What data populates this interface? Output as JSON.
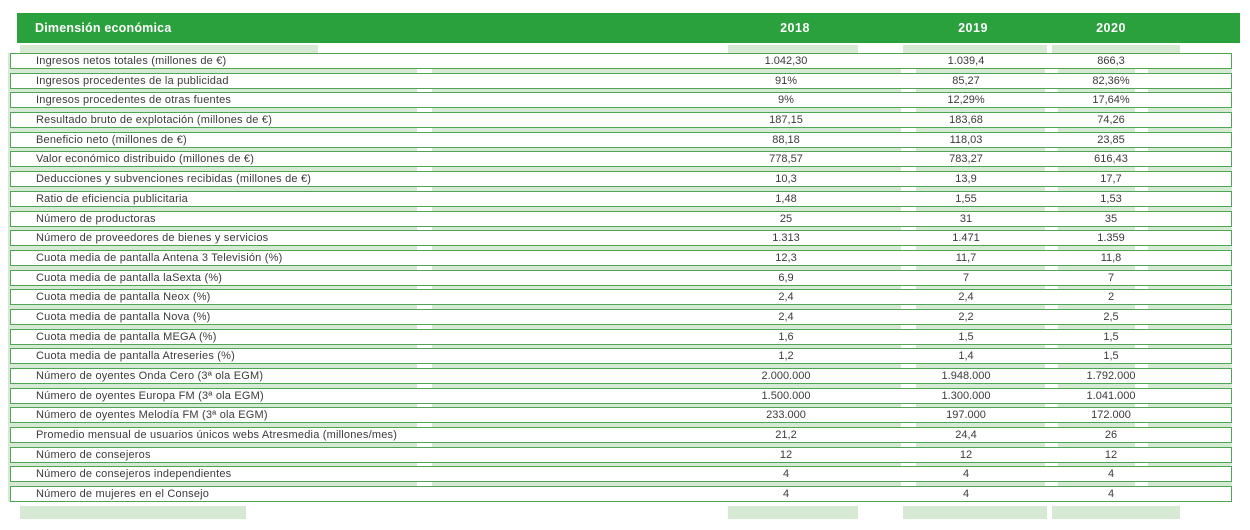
{
  "header": {
    "title": "Dimensión económica",
    "columns": [
      "2018",
      "2019",
      "2020"
    ]
  },
  "colors": {
    "header_green": "#2aa13c",
    "row_border": "#4fa456",
    "light_green": "#d5e9d3",
    "text": "#3b3b3a"
  },
  "table": {
    "rows": [
      {
        "label": "Ingresos netos totales (millones de €)",
        "y2018": "1.042,30",
        "y2019": "1.039,4",
        "y2020": "866,3"
      },
      {
        "label": "Ingresos procedentes de la publicidad",
        "y2018": "91%",
        "y2019": "85,27",
        "y2020": "82,36%"
      },
      {
        "label": "Ingresos procedentes de otras fuentes",
        "y2018": "9%",
        "y2019": "12,29%",
        "y2020": "17,64%"
      },
      {
        "label": "Resultado bruto de explotación (millones de €)",
        "y2018": "187,15",
        "y2019": "183,68",
        "y2020": "74,26"
      },
      {
        "label": "Beneficio neto (millones de €)",
        "y2018": "88,18",
        "y2019": "118,03",
        "y2020": "23,85"
      },
      {
        "label": "Valor económico distribuido (millones de €)",
        "y2018": "778,57",
        "y2019": "783,27",
        "y2020": "616,43"
      },
      {
        "label": "Deducciones y subvenciones recibidas (millones de €)",
        "y2018": "10,3",
        "y2019": "13,9",
        "y2020": "17,7"
      },
      {
        "label": "Ratio de eficiencia publicitaria",
        "y2018": "1,48",
        "y2019": "1,55",
        "y2020": "1,53"
      },
      {
        "label": "Número de productoras",
        "y2018": "25",
        "y2019": "31",
        "y2020": "35"
      },
      {
        "label": "Número de proveedores de bienes y servicios",
        "y2018": "1.313",
        "y2019": "1.471",
        "y2020": "1.359"
      },
      {
        "label": "Cuota media de pantalla Antena 3 Televisión (%)",
        "y2018": "12,3",
        "y2019": "11,7",
        "y2020": "11,8"
      },
      {
        "label": "Cuota media de pantalla laSexta (%)",
        "y2018": "6,9",
        "y2019": "7",
        "y2020": "7"
      },
      {
        "label": "Cuota media de pantalla Neox (%)",
        "y2018": "2,4",
        "y2019": "2,4",
        "y2020": "2"
      },
      {
        "label": "Cuota media de pantalla Nova (%)",
        "y2018": "2,4",
        "y2019": "2,2",
        "y2020": "2,5"
      },
      {
        "label": "Cuota media de pantalla MEGA (%)",
        "y2018": "1,6",
        "y2019": "1,5",
        "y2020": "1,5"
      },
      {
        "label": "Cuota media de pantalla Atreseries (%)",
        "y2018": "1,2",
        "y2019": "1,4",
        "y2020": "1,5"
      },
      {
        "label": "Número de oyentes Onda Cero (3ª ola EGM)",
        "y2018": "2.000.000",
        "y2019": "1.948.000",
        "y2020": "1.792.000"
      },
      {
        "label": "Número de oyentes Europa FM  (3ª ola EGM)",
        "y2018": "1.500.000",
        "y2019": "1.300.000",
        "y2020": "1.041.000"
      },
      {
        "label": "Número de oyentes Melodía FM (3ª ola EGM)",
        "y2018": "233.000",
        "y2019": "197.000",
        "y2020": "172.000"
      },
      {
        "label": "Promedio mensual de usuarios únicos webs Atresmedia (millones/mes)",
        "y2018": "21,2",
        "y2019": "24,4",
        "y2020": "26"
      },
      {
        "label": "Número de consejeros",
        "y2018": "12",
        "y2019": "12",
        "y2020": "12"
      },
      {
        "label": "Número de consejeros independientes",
        "y2018": "4",
        "y2019": "4",
        "y2020": "4"
      },
      {
        "label": "Número de mujeres en el Consejo",
        "y2018": "4",
        "y2019": "4",
        "y2020": "4"
      }
    ]
  }
}
